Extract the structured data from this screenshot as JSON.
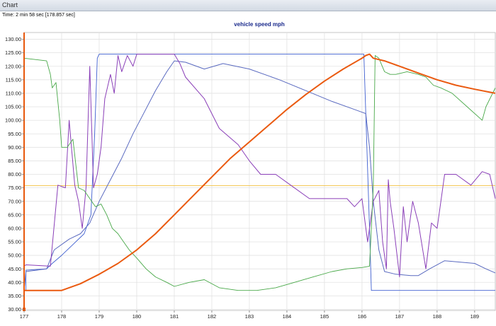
{
  "window": {
    "title": "Chart"
  },
  "time_readout": "Time: 2 min 58 sec [178.857 sec]",
  "chart_data": {
    "type": "line",
    "title": "vehicle speed mph",
    "xlim": [
      177,
      189.55
    ],
    "ylim": [
      29.6,
      132.5
    ],
    "x_ticks": [
      177,
      178,
      179,
      180,
      181,
      182,
      183,
      184,
      185,
      186,
      187,
      188,
      189
    ],
    "y_ticks": [
      30,
      35,
      40,
      45,
      50,
      55,
      60,
      65,
      70,
      75,
      80,
      85,
      90,
      95,
      100,
      105,
      110,
      115,
      120,
      125,
      130
    ],
    "y_tick_labels": [
      "30.00",
      "35.00",
      "40.00",
      "45.00",
      "50.00",
      "55.00",
      "60.00",
      "65.00",
      "70.00",
      "75.00",
      "80.00",
      "85.00",
      "90.00",
      "95.00",
      "100.00",
      "105.00",
      "110.00",
      "115.00",
      "120.00",
      "125.00",
      "130.00"
    ],
    "grid": true,
    "reference_line": {
      "y": 75.8,
      "color": "#f2c040"
    },
    "cursor_line": {
      "x": 177.0,
      "color": "#e8580c"
    },
    "series": [
      {
        "color": "#3f5fd0",
        "width": 0.9,
        "x": [
          177.0,
          177.05,
          177.05,
          177.6,
          177.75,
          178.0,
          178.3,
          178.6,
          178.78,
          178.88,
          178.95,
          179.0,
          186.05,
          186.2,
          186.25,
          189.55
        ],
        "y": [
          37.0,
          37.0,
          44.5,
          45.0,
          47.0,
          50.0,
          54.0,
          58.0,
          65.0,
          95.0,
          123.0,
          124.5,
          124.5,
          60.0,
          37.0,
          37.0
        ]
      },
      {
        "color": "#5a6ac0",
        "width": 1.0,
        "x": [
          177.0,
          177.05,
          177.6,
          177.8,
          178.2,
          178.5,
          178.75,
          179.0,
          179.3,
          179.6,
          179.9,
          180.2,
          180.5,
          180.8,
          181.0,
          181.3,
          181.8,
          182.3,
          183.0,
          183.8,
          184.5,
          185.2,
          185.8,
          186.1,
          186.2,
          186.3,
          186.45,
          186.6,
          186.9,
          187.3,
          187.5,
          187.8,
          188.2,
          188.6,
          189.0,
          189.3,
          189.55
        ],
        "y": [
          37.0,
          44.0,
          45.0,
          52.0,
          56.0,
          58.0,
          62.0,
          70.0,
          78.0,
          86.0,
          95.0,
          103.0,
          111.0,
          118.0,
          122.0,
          121.5,
          119.0,
          121.0,
          119.0,
          115.0,
          111.0,
          107.0,
          104.0,
          102.5,
          90.0,
          70.0,
          52.0,
          44.0,
          43.0,
          42.5,
          42.5,
          45.0,
          48.0,
          47.5,
          47.0,
          45.0,
          43.5
        ]
      },
      {
        "color": "#8a3fb8",
        "width": 1.0,
        "x": [
          177.0,
          177.05,
          177.7,
          177.9,
          178.1,
          178.2,
          178.35,
          178.45,
          178.55,
          178.65,
          178.75,
          178.85,
          178.95,
          179.05,
          179.15,
          179.3,
          179.4,
          179.5,
          179.6,
          179.75,
          179.9,
          180.0,
          180.3,
          180.5,
          181.0,
          181.15,
          181.3,
          181.8,
          182.2,
          182.7,
          183.0,
          183.3,
          183.7,
          184.1,
          184.6,
          185.0,
          185.6,
          185.8,
          186.0,
          186.15,
          186.3,
          186.45,
          186.55,
          186.65,
          186.7,
          186.75,
          186.85,
          187.0,
          187.1,
          187.2,
          187.35,
          187.5,
          187.7,
          187.85,
          188.0,
          188.2,
          188.5,
          188.9,
          189.2,
          189.4,
          189.55
        ],
        "y": [
          46.0,
          46.5,
          46.0,
          76.0,
          75.0,
          100.0,
          76.0,
          70.0,
          60.0,
          75.0,
          120.0,
          75.0,
          80.0,
          90.0,
          108.0,
          117.0,
          110.0,
          124.0,
          118.0,
          124.0,
          120.0,
          124.5,
          124.5,
          124.5,
          124.5,
          121.0,
          116.0,
          108.0,
          97.0,
          91.0,
          85.0,
          80.0,
          80.0,
          76.0,
          71.0,
          71.0,
          71.0,
          68.0,
          71.0,
          55.0,
          70.0,
          74.0,
          55.0,
          45.0,
          78.0,
          70.0,
          60.0,
          42.0,
          68.0,
          55.0,
          70.0,
          62.0,
          45.0,
          62.0,
          60.0,
          80.0,
          80.0,
          76.0,
          81.0,
          80.0,
          71.0
        ]
      },
      {
        "color": "#48a848",
        "width": 0.9,
        "x": [
          177.0,
          177.6,
          177.7,
          177.75,
          177.85,
          177.95,
          178.0,
          178.15,
          178.3,
          178.45,
          178.6,
          178.8,
          178.9,
          179.05,
          179.2,
          179.35,
          179.5,
          179.65,
          179.8,
          180.0,
          180.25,
          180.5,
          180.8,
          181.0,
          181.4,
          181.8,
          182.2,
          182.7,
          183.2,
          183.7,
          184.2,
          184.7,
          185.2,
          185.6,
          186.0,
          186.2,
          186.3,
          186.35,
          186.45,
          186.6,
          186.75,
          186.9,
          187.2,
          187.5,
          187.7,
          187.9,
          188.1,
          188.4,
          188.8,
          189.2,
          189.3,
          189.55
        ],
        "y": [
          123.0,
          122.0,
          117.0,
          112.0,
          114.0,
          100.0,
          90.0,
          90.0,
          93.0,
          75.0,
          74.0,
          70.0,
          68.0,
          69.0,
          65.0,
          60.0,
          58.0,
          55.0,
          52.0,
          49.0,
          45.0,
          42.0,
          40.0,
          38.5,
          40.0,
          41.0,
          38.0,
          37.0,
          37.0,
          38.0,
          40.0,
          42.0,
          44.0,
          45.0,
          45.5,
          46.0,
          75.0,
          124.0,
          123.0,
          118.0,
          117.0,
          117.0,
          118.0,
          117.0,
          116.0,
          113.0,
          112.0,
          110.0,
          105.0,
          100.0,
          105.0,
          112.0
        ]
      },
      {
        "color": "#ea5a10",
        "width": 2.0,
        "x": [
          177.0,
          177.5,
          178.0,
          178.5,
          179.0,
          179.5,
          180.0,
          180.5,
          181.0,
          181.5,
          182.0,
          182.5,
          183.0,
          183.5,
          184.0,
          184.5,
          185.0,
          185.5,
          186.0,
          186.1,
          186.2,
          186.3,
          186.6,
          187.0,
          187.5,
          188.0,
          188.5,
          189.0,
          189.55
        ],
        "y": [
          37.0,
          37.0,
          37.0,
          39.5,
          43.0,
          47.0,
          52.0,
          58.0,
          65.0,
          72.0,
          79.0,
          86.0,
          92.0,
          98.0,
          104.0,
          109.5,
          114.5,
          119.0,
          123.0,
          124.0,
          124.5,
          123.0,
          122.0,
          120.0,
          117.5,
          115.0,
          113.0,
          111.5,
          110.0
        ]
      }
    ]
  }
}
